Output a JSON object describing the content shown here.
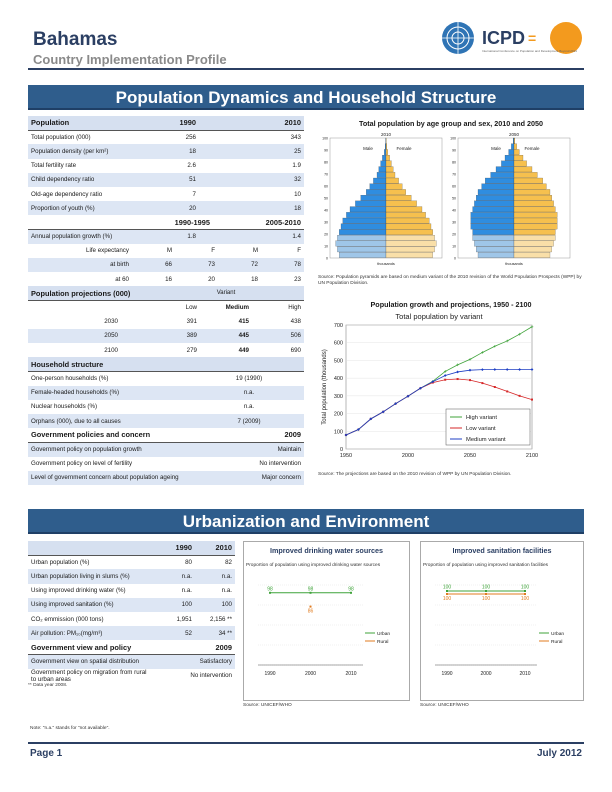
{
  "header": {
    "country": "Bahamas",
    "subtitle": "Country Implementation Profile",
    "logo_text": "ICPD",
    "logo_eq": "=",
    "logo_sub": "International Conference on Population and Development Beyond 2014"
  },
  "sections": {
    "pop": "Population Dynamics and Household Structure",
    "urban": "Urbanization and Environment"
  },
  "pop_table": {
    "hdr": {
      "label": "Population",
      "c1": "1990",
      "c2": "2010"
    },
    "rows": [
      {
        "label": "Total population (000)",
        "v1": "256",
        "v2": "343"
      },
      {
        "label": "Population density (per km²)",
        "v1": "18",
        "v2": "25"
      },
      {
        "label": "Total fertility rate",
        "v1": "2.6",
        "v2": "1.9"
      },
      {
        "label": "Child dependency ratio",
        "v1": "51",
        "v2": "32"
      },
      {
        "label": "Old-age dependency ratio",
        "v1": "7",
        "v2": "10"
      },
      {
        "label": "Proportion of youth (%)",
        "v1": "20",
        "v2": "18"
      }
    ],
    "period_hdr": {
      "c1": "1990-1995",
      "c2": "2005-2010"
    },
    "growth": {
      "label": "Annual population growth (%)",
      "v1": "1.8",
      "v2": "1.4"
    },
    "le_hdr": {
      "label": "Life expectancy",
      "m1": "M",
      "f1": "F",
      "m2": "M",
      "f2": "F"
    },
    "le_rows": [
      {
        "label": "at birth",
        "m1": "66",
        "f1": "73",
        "m2": "72",
        "f2": "78"
      },
      {
        "label": "at 60",
        "m1": "16",
        "f1": "20",
        "m2": "18",
        "f2": "23"
      }
    ]
  },
  "proj_table": {
    "hdr": "Population projections (000)",
    "variant": "Variant",
    "low": "Low",
    "medium": "Medium",
    "high": "High",
    "rows": [
      {
        "year": "2030",
        "low": "391",
        "med": "415",
        "high": "438"
      },
      {
        "year": "2050",
        "low": "389",
        "med": "445",
        "high": "506"
      },
      {
        "year": "2100",
        "low": "279",
        "med": "449",
        "high": "690"
      }
    ]
  },
  "household": {
    "hdr": "Household structure",
    "rows": [
      {
        "label": "One-person households (%)",
        "v": "19 (1990)"
      },
      {
        "label": "Female-headed households (%)",
        "v": "n.a."
      },
      {
        "label": "Nuclear households (%)",
        "v": "n.a."
      },
      {
        "label": "Orphans (000), due to all causes",
        "v": "7 (2009)"
      }
    ]
  },
  "gov": {
    "hdr": "Government policies and concern",
    "year": "2009",
    "rows": [
      {
        "label": "Government policy on population growth",
        "v": "Maintain"
      },
      {
        "label": "Government policy on level of fertility",
        "v": "No intervention"
      },
      {
        "label": "Level of government concern about population ageing",
        "v": "Major concern"
      }
    ]
  },
  "pyramid": {
    "title": "Total population by age group and sex, 2010 and 2050",
    "years": [
      "2010",
      "2050"
    ],
    "male": "Male",
    "female": "Female",
    "age_ticks": [
      "0",
      "10",
      "20",
      "30",
      "40",
      "50",
      "60",
      "70",
      "80",
      "90",
      "100"
    ],
    "x_label": "thousands",
    "source": "Source: Population pyramids are based on medium variant of the 2010 revision of the World Population Prospects (WPP) by UN Population Division."
  },
  "chart_data": [
    {
      "type": "line",
      "title": "Population growth and projections, 1950 - 2100",
      "subtitle": "Total population by variant",
      "ylabel": "Total population (thousands)",
      "xlim": [
        1950,
        2100
      ],
      "ylim": [
        0,
        700
      ],
      "x_ticks": [
        "1950",
        "2000",
        "2050",
        "2100"
      ],
      "y_ticks": [
        "0",
        "100",
        "200",
        "300",
        "400",
        "500",
        "600",
        "700"
      ],
      "legend": "bottom-right",
      "x": [
        1950,
        1960,
        1970,
        1980,
        1990,
        2000,
        2010,
        2020,
        2030,
        2040,
        2050,
        2060,
        2070,
        2080,
        2090,
        2100
      ],
      "series": [
        {
          "name": "High variant",
          "color": "#3fa33a",
          "values": [
            79,
            110,
            170,
            210,
            256,
            298,
            343,
            382,
            438,
            475,
            506,
            545,
            580,
            610,
            648,
            690
          ]
        },
        {
          "name": "Low variant",
          "color": "#d62728",
          "values": [
            79,
            110,
            170,
            210,
            256,
            298,
            343,
            375,
            391,
            395,
            389,
            372,
            350,
            325,
            300,
            279
          ]
        },
        {
          "name": "Medium variant",
          "color": "#1f3fc4",
          "values": [
            79,
            110,
            170,
            210,
            256,
            298,
            343,
            380,
            415,
            435,
            445,
            448,
            449,
            449,
            449,
            449
          ]
        }
      ],
      "source": "Source: The projections are based on the 2010 revision of WPP by UN Population Division."
    },
    {
      "type": "line",
      "title": "Improved drinking water sources",
      "subtitle": "Proportion of population using improved drinking water sources",
      "x": [
        "1990",
        "2000",
        "2010"
      ],
      "series": [
        {
          "name": "Urban",
          "color": "#3fa33a",
          "values": [
            98,
            98,
            98
          ]
        },
        {
          "name": "Rural",
          "color": "#e07b1f",
          "values": [
            null,
            86,
            null
          ]
        }
      ],
      "source": "Source: UNICEF/WHO"
    },
    {
      "type": "line",
      "title": "Improved sanitation facilities",
      "subtitle": "Proportion of population using improved sanitation facilities",
      "x": [
        "1990",
        "2000",
        "2010"
      ],
      "series": [
        {
          "name": "Urban",
          "color": "#3fa33a",
          "values": [
            100,
            100,
            100
          ]
        },
        {
          "name": "Rural",
          "color": "#e07b1f",
          "values": [
            100,
            100,
            100
          ]
        }
      ],
      "source": "Source: UNICEF/WHO"
    }
  ],
  "urban_table": {
    "c1": "1990",
    "c2": "2010",
    "rows": [
      {
        "label": "Urban population (%)",
        "v1": "80",
        "v2": "82"
      },
      {
        "label": "Urban population living in slums (%)",
        "v1": "n.a.",
        "v2": "n.a."
      },
      {
        "label": "Using improved drinking water (%)",
        "v1": "n.a.",
        "v2": "n.a."
      },
      {
        "label": "Using improved sanitation (%)",
        "v1": "100",
        "v2": "100"
      },
      {
        "label": "CO₂ emmission (000 tons)",
        "v1": "1,951",
        "v2": "2,156 **"
      },
      {
        "label": "Air pollution: PM₁₀(mg/m³)",
        "v1": "52",
        "v2": "34 **"
      }
    ],
    "gov_hdr": "Government view and policy",
    "gov_year": "2009",
    "gov_rows": [
      {
        "label": "Government view on spatial distribution",
        "v": "Satisfactory"
      },
      {
        "label": "Government policy on migration from rural to urban areas",
        "v": "No intervention"
      }
    ],
    "footnote": "** Data year 2008."
  },
  "note": "Note: \"n.a.\" stands for \"not available\".",
  "footer": {
    "page": "Page 1",
    "date": "July 2012"
  }
}
